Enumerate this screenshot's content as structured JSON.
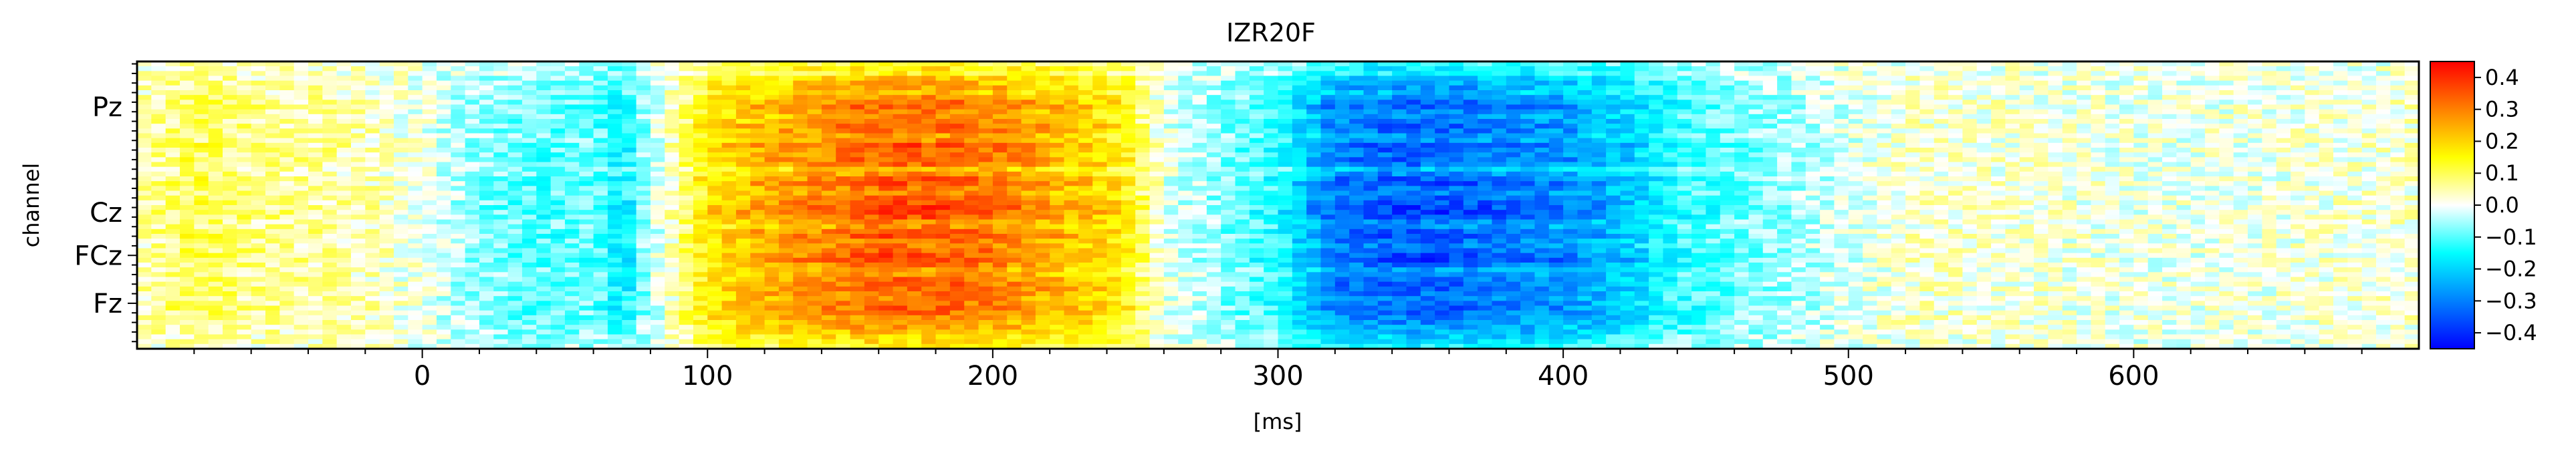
{
  "chart_data": {
    "type": "heatmap",
    "title": "IZR20F",
    "xlabel": "[ms]",
    "ylabel": "channel",
    "xlim": [
      -100,
      700
    ],
    "x_ticks": [
      0,
      100,
      200,
      300,
      400,
      500,
      600
    ],
    "y_channel_count": 60,
    "y_labeled_channels": [
      {
        "label": "Pz",
        "row": 9
      },
      {
        "label": "Cz",
        "row": 31
      },
      {
        "label": "FCz",
        "row": 40
      },
      {
        "label": "Fz",
        "row": 50
      }
    ],
    "colorbar": {
      "range": [
        -0.45,
        0.45
      ],
      "ticks": [
        "0.4",
        "0.3",
        "0.2",
        "0.1",
        "0.0",
        "−0.1",
        "−0.2",
        "−0.3",
        "−0.4"
      ],
      "tick_values": [
        0.4,
        0.3,
        0.2,
        0.1,
        0.0,
        -0.1,
        -0.2,
        -0.3,
        -0.4
      ],
      "colormap": [
        "#0000ff",
        "#0080ff",
        "#00ffff",
        "#ffffff",
        "#ffff00",
        "#ff8000",
        "#ff0000"
      ]
    },
    "time_profile": {
      "ms": [
        -100,
        -80,
        -60,
        -40,
        -20,
        0,
        20,
        40,
        60,
        70,
        80,
        100,
        120,
        140,
        160,
        180,
        200,
        220,
        245,
        260,
        280,
        300,
        320,
        340,
        360,
        380,
        400,
        420,
        440,
        460,
        480,
        500,
        520,
        560,
        600,
        650,
        700
      ],
      "value": [
        0.05,
        0.12,
        0.08,
        0.07,
        0.05,
        0.0,
        -0.08,
        -0.12,
        -0.1,
        -0.2,
        -0.05,
        0.2,
        0.28,
        0.32,
        0.38,
        0.38,
        0.35,
        0.28,
        0.2,
        0.0,
        -0.08,
        -0.15,
        -0.35,
        -0.38,
        -0.38,
        -0.35,
        -0.32,
        -0.25,
        -0.15,
        -0.1,
        -0.06,
        -0.02,
        0.03,
        0.02,
        0.0,
        0.01,
        0.03
      ]
    },
    "channel_weights": [
      0.35,
      0.45,
      0.4,
      0.6,
      0.65,
      0.7,
      0.6,
      0.75,
      0.85,
      0.9,
      0.8,
      0.75,
      0.8,
      0.9,
      0.85,
      0.7,
      0.75,
      0.95,
      0.9,
      0.85,
      0.9,
      0.85,
      0.6,
      0.75,
      0.9,
      0.95,
      0.85,
      0.8,
      0.9,
      0.95,
      1.0,
      1.0,
      0.95,
      0.8,
      0.75,
      0.9,
      0.95,
      0.85,
      0.8,
      0.9,
      0.95,
      1.0,
      0.85,
      0.7,
      0.75,
      0.85,
      0.9,
      0.9,
      0.85,
      0.8,
      0.85,
      0.9,
      0.85,
      0.8,
      0.75,
      0.7,
      0.65,
      0.55,
      0.5,
      0.4
    ]
  }
}
